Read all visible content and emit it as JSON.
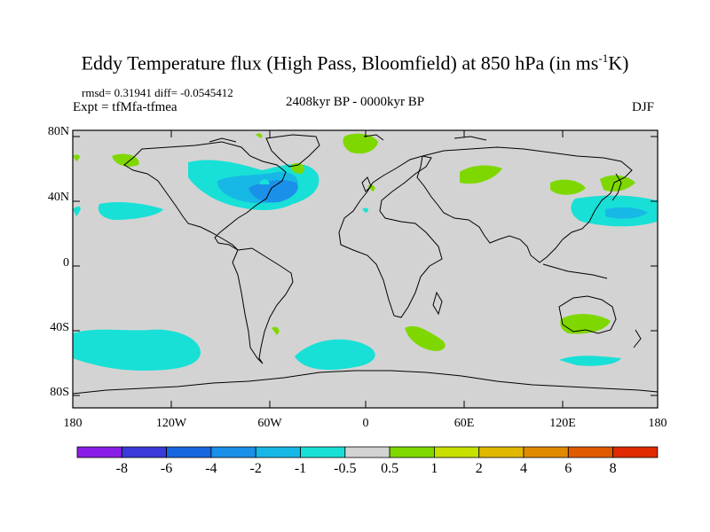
{
  "title": {
    "main": "Eddy Temperature flux (High Pass, Bloomfield) at 850 hPa (in ms",
    "exp": "-1",
    "unit_end": "K)"
  },
  "stats": "rmsd= 0.31941 diff= -0.0545412",
  "experiment": "Expt = tfMfa-tfmea",
  "period": "2408kyr BP - 0000kyr BP",
  "season": "DJF",
  "y_ticks": [
    "80N",
    "40N",
    "0",
    "40S",
    "80S"
  ],
  "x_ticks": [
    "180",
    "120W",
    "60W",
    "0",
    "60E",
    "120E",
    "180"
  ],
  "colorbar": {
    "labels": [
      "-8",
      "-6",
      "-4",
      "-2",
      "-1",
      "-0.5",
      "0.5",
      "1",
      "2",
      "4",
      "6",
      "8"
    ],
    "colors": [
      "#8a1ee6",
      "#3a3ad8",
      "#1a66e0",
      "#1a90e8",
      "#18b8e6",
      "#18e0d6",
      "#d3d3d3",
      "#7ed800",
      "#c8e000",
      "#e0b800",
      "#e08a00",
      "#e05a00",
      "#e02a00"
    ]
  },
  "colors": {
    "land_bg": "#d3d3d3",
    "neg_light": "#18e0d6",
    "neg_mid": "#18b8e6",
    "neg_strong": "#1a90e8",
    "pos_light": "#7ed800"
  }
}
